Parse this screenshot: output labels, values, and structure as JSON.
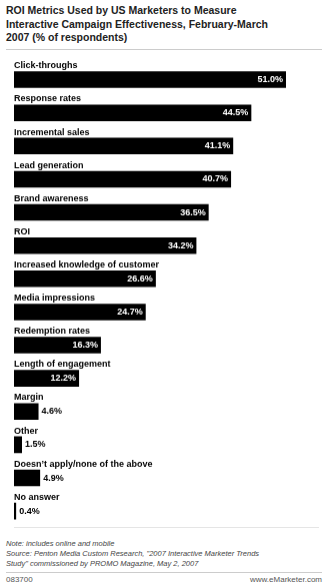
{
  "chart_data": {
    "type": "bar",
    "orientation": "horizontal",
    "title": "ROI Metrics Used by US Marketers to Measure\nInteractive Campaign Effectiveness, February-March\n2007 (% of respondents)",
    "categories": [
      "Click-throughs",
      "Response rates",
      "Incremental sales",
      "Lead generation",
      "Brand awareness",
      "ROI",
      "Increased knowledge of customer",
      "Media impressions",
      "Redemption rates",
      "Length of engagement",
      "Margin",
      "Other",
      "Doesn’t apply/none of the above",
      "No answer"
    ],
    "values": [
      51.0,
      44.5,
      41.1,
      40.7,
      36.5,
      34.2,
      26.6,
      24.7,
      16.3,
      12.2,
      4.6,
      1.5,
      4.9,
      0.4
    ],
    "value_labels": [
      "51.0%",
      "44.5%",
      "41.1%",
      "40.7%",
      "36.5%",
      "34.2%",
      "26.6%",
      "24.7%",
      "16.3%",
      "12.2%",
      "4.6%",
      "1.5%",
      "4.9%",
      "0.4%"
    ],
    "color": "#000000",
    "xlim": [
      0,
      57
    ],
    "grid": false,
    "tick_labels": false,
    "data_labels": true,
    "annotations": [
      "Note: includes online and mobile\nSource: Penton Media Custom Research, \"2007 Interactive Marketer Trends\nStudy\" commissioned by PROMO Magazine, May 2, 2007",
      "083700",
      "www.eMarketer.com"
    ]
  }
}
